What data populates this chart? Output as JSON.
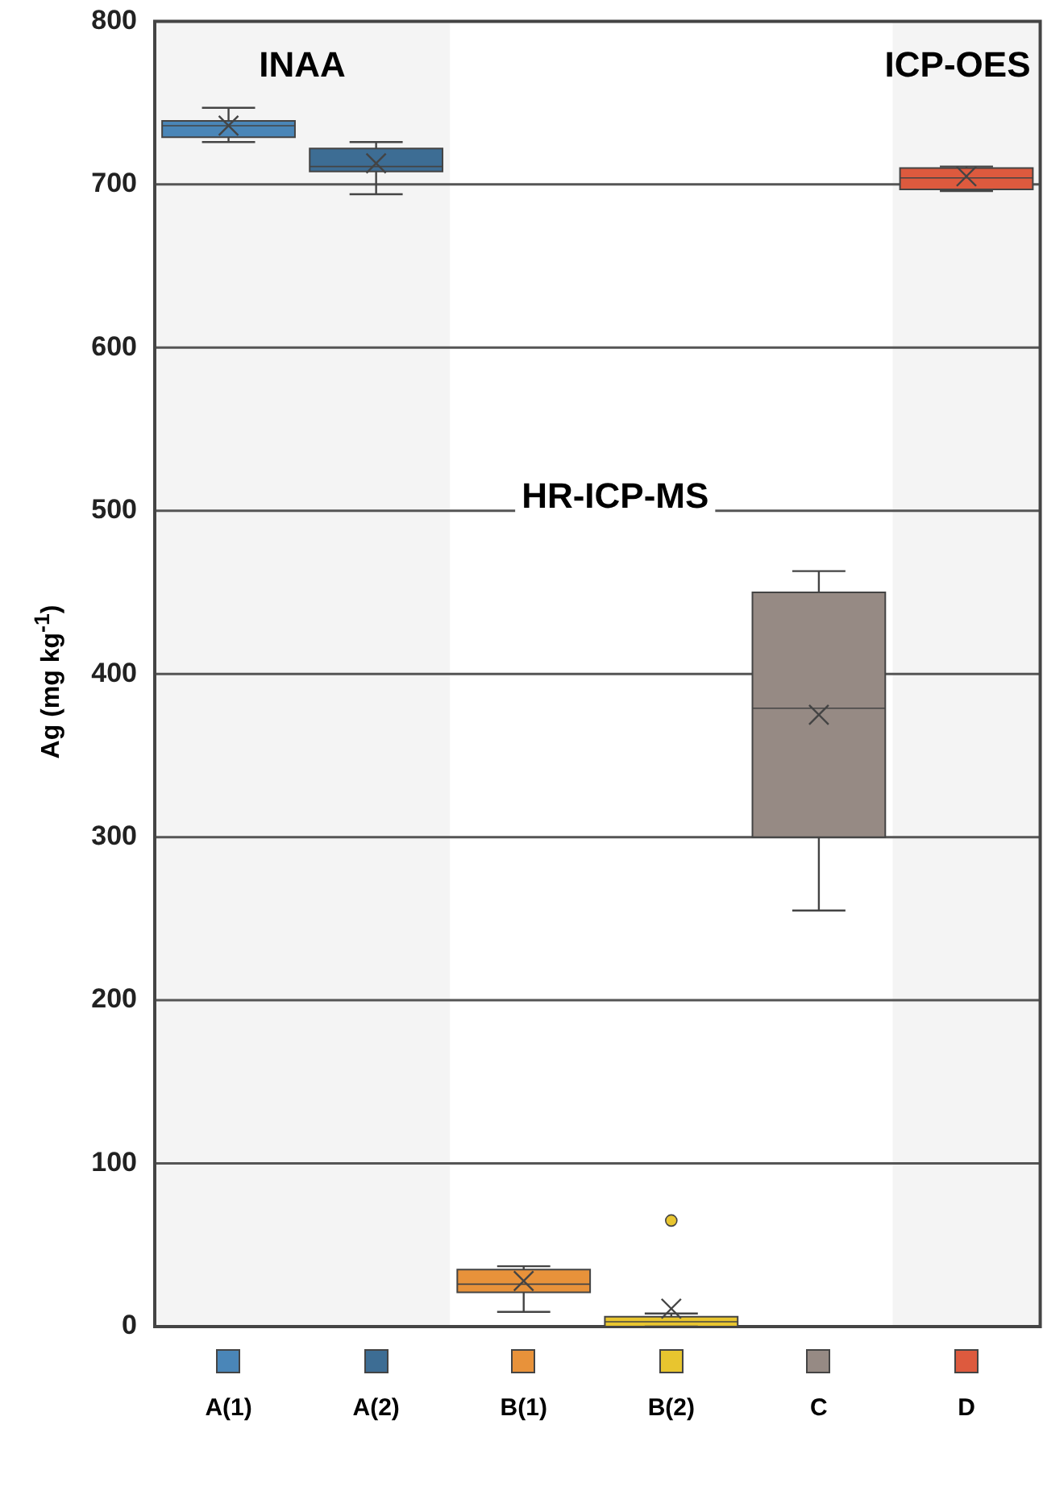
{
  "chart_data": {
    "type": "box",
    "ylabel": "Ag (mg kg$^{-1}$)",
    "categories": [
      "A(1)",
      "A(2)",
      "B(1)",
      "B(2)",
      "C",
      "D"
    ],
    "colors": [
      "#4a86b8",
      "#3d6d94",
      "#e8923a",
      "#e8c52f",
      "#968a84",
      "#dd5a3e"
    ],
    "boxes": [
      {
        "low": 726,
        "q1": 729,
        "median": 736,
        "q3": 739,
        "high": 747,
        "mean": 736
      },
      {
        "low": 694,
        "q1": 708,
        "median": 711,
        "q3": 722,
        "high": 726,
        "mean": 713
      },
      {
        "low": 9,
        "q1": 21,
        "median": 26,
        "q3": 35,
        "high": 37,
        "mean": 28
      },
      {
        "low": 0,
        "q1": 0,
        "median": 3,
        "q3": 6,
        "high": 8,
        "mean": 11,
        "outliers": [
          65
        ]
      },
      {
        "low": 255,
        "q1": 300,
        "median": 379,
        "q3": 450,
        "high": 463,
        "mean": 375
      },
      {
        "low": 696,
        "q1": 697,
        "median": 704,
        "q3": 710,
        "high": 711,
        "mean": 705
      }
    ],
    "ylim": [
      0,
      800
    ],
    "yticks": [
      0,
      100,
      200,
      300,
      400,
      500,
      600,
      700,
      800
    ],
    "grid": "y",
    "annotations": [
      "HR-ICP-MS"
    ],
    "bands": [
      {
        "axis": "x",
        "from": "A(1)",
        "to": "A(2)",
        "label": "INAA",
        "color": "#f4f4f4"
      },
      {
        "axis": "x",
        "from": "D",
        "to": "D",
        "label": "ICP-OES",
        "color": "#f4f4f4"
      }
    ]
  }
}
